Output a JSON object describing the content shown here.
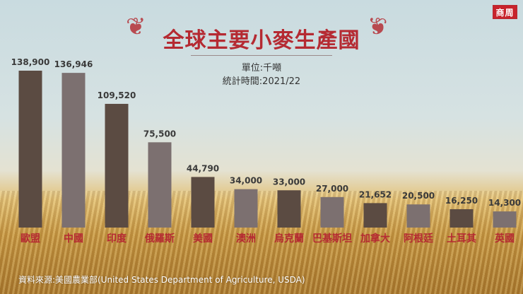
{
  "logo": "商周",
  "chart_data": {
    "type": "bar",
    "title": "全球主要小麥生產國",
    "unit": "單位:千噸",
    "period": "統計時間:2021/22",
    "categories": [
      "歐盟",
      "中國",
      "印度",
      "俄羅斯",
      "美國",
      "澳洲",
      "烏克蘭",
      "巴基斯坦",
      "加拿大",
      "阿根廷",
      "土耳其",
      "英國"
    ],
    "values": [
      138900,
      136946,
      109520,
      75500,
      44790,
      34000,
      33000,
      27000,
      21652,
      20500,
      16250,
      14300
    ],
    "value_labels": [
      "138,900",
      "136,946",
      "109,520",
      "75,500",
      "44,790",
      "34,000",
      "33,000",
      "27,000",
      "21,652",
      "20,500",
      "16,250",
      "14,300"
    ],
    "ylim": [
      0,
      138900
    ],
    "grid": false,
    "colors": {
      "bar_dark": "#5b4b42",
      "bar_light": "#7c7070",
      "category_label": "#b52a32",
      "value_label": "#3a3a3a",
      "title": "#b52a32"
    },
    "source": "資料來源:美國農業部(United States Department of Agriculture, USDA)"
  }
}
